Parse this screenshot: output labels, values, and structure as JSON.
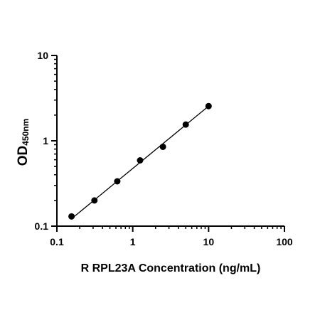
{
  "chart_data": {
    "type": "scatter",
    "title": "",
    "xlabel": "R RPL23A Concentration (ng/mL)",
    "ylabel": "OD",
    "ylabel_subscript": "450nm",
    "x_scale": "log",
    "y_scale": "log",
    "xlim": [
      0.1,
      100
    ],
    "ylim": [
      0.1,
      10
    ],
    "x_ticks": [
      "0.1",
      "1",
      "10",
      "100"
    ],
    "y_ticks": [
      "0.1",
      "1",
      "10"
    ],
    "grid": false,
    "legend": "none",
    "series": [
      {
        "x": [
          0.156,
          0.3125,
          0.625,
          1.25,
          2.5,
          5,
          10
        ],
        "y": [
          0.13,
          0.2,
          0.335,
          0.59,
          0.85,
          1.55,
          2.55
        ]
      }
    ],
    "fit_line": {
      "x": [
        0.156,
        10
      ],
      "y": [
        0.122,
        2.55
      ]
    },
    "colors": {
      "marker": "#000000",
      "line": "#000000"
    }
  }
}
